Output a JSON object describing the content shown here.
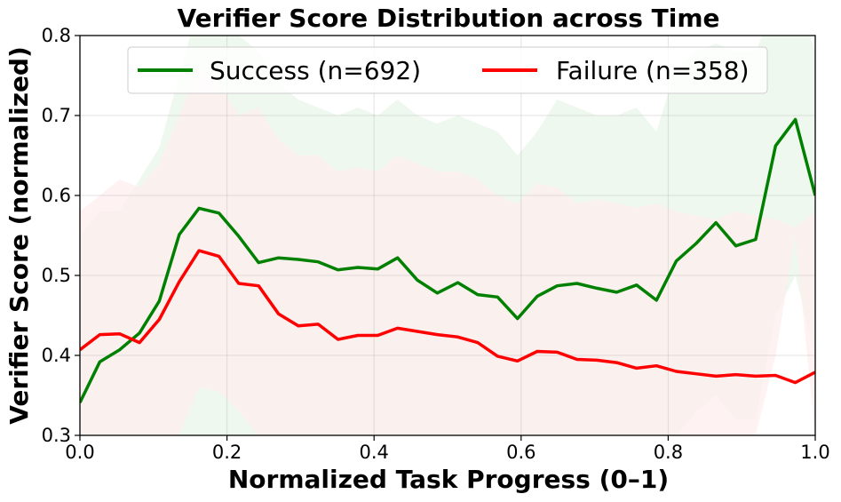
{
  "chart_data": {
    "type": "line",
    "title": "Verifier Score Distribution across Time",
    "xlabel": "Normalized Task Progress (0–1)",
    "ylabel": "Verifier Score (normalized)",
    "xlim": [
      0.0,
      1.0
    ],
    "ylim": [
      0.3,
      0.8
    ],
    "xticks": [
      "0.0",
      "0.2",
      "0.4",
      "0.6",
      "0.8",
      "1.0"
    ],
    "yticks": [
      "0.3",
      "0.4",
      "0.5",
      "0.6",
      "0.7",
      "0.8"
    ],
    "grid": true,
    "legend_position": "top-center",
    "x": [
      0.0,
      0.027,
      0.054,
      0.081,
      0.108,
      0.135,
      0.162,
      0.189,
      0.216,
      0.243,
      0.27,
      0.297,
      0.324,
      0.351,
      0.378,
      0.405,
      0.432,
      0.459,
      0.486,
      0.514,
      0.541,
      0.568,
      0.595,
      0.622,
      0.649,
      0.676,
      0.703,
      0.73,
      0.757,
      0.784,
      0.811,
      0.838,
      0.865,
      0.892,
      0.919,
      0.946,
      0.973,
      1.0
    ],
    "series": [
      {
        "name": "Success (n=692)",
        "color": "#008000",
        "band_color": "#e8f5e8",
        "values": [
          0.341,
          0.392,
          0.407,
          0.428,
          0.468,
          0.551,
          0.584,
          0.578,
          0.549,
          0.516,
          0.522,
          0.52,
          0.517,
          0.507,
          0.51,
          0.508,
          0.522,
          0.494,
          0.478,
          0.491,
          0.476,
          0.473,
          0.446,
          0.474,
          0.487,
          0.49,
          0.484,
          0.479,
          0.488,
          0.469,
          0.518,
          0.54,
          0.566,
          0.537,
          0.545,
          0.662,
          0.695,
          0.6
        ],
        "upper": [
          0.55,
          0.58,
          0.58,
          0.62,
          0.66,
          0.75,
          0.84,
          0.83,
          0.8,
          0.78,
          0.74,
          0.72,
          0.71,
          0.7,
          0.71,
          0.7,
          0.72,
          0.7,
          0.69,
          0.7,
          0.69,
          0.68,
          0.65,
          0.68,
          0.72,
          0.71,
          0.7,
          0.7,
          0.71,
          0.68,
          0.76,
          0.78,
          0.79,
          0.78,
          0.78,
          0.84,
          0.86,
          0.78
        ],
        "lower": [
          0.3,
          0.3,
          0.3,
          0.3,
          0.3,
          0.3,
          0.3,
          0.3,
          0.3,
          0.3,
          0.3,
          0.3,
          0.3,
          0.3,
          0.3,
          0.3,
          0.3,
          0.3,
          0.3,
          0.3,
          0.3,
          0.3,
          0.3,
          0.3,
          0.3,
          0.3,
          0.3,
          0.3,
          0.3,
          0.3,
          0.3,
          0.33,
          0.35,
          0.32,
          0.32,
          0.45,
          0.5,
          0.4
        ]
      },
      {
        "name": "Failure (n=358)",
        "color": "#ff0000",
        "band_color": "#fdeeee",
        "values": [
          0.407,
          0.426,
          0.427,
          0.416,
          0.445,
          0.492,
          0.531,
          0.524,
          0.49,
          0.487,
          0.452,
          0.437,
          0.439,
          0.42,
          0.425,
          0.425,
          0.434,
          0.43,
          0.426,
          0.423,
          0.416,
          0.399,
          0.393,
          0.405,
          0.404,
          0.395,
          0.394,
          0.391,
          0.384,
          0.387,
          0.38,
          0.377,
          0.374,
          0.376,
          0.374,
          0.375,
          0.366,
          0.379
        ],
        "upper": [
          0.58,
          0.6,
          0.62,
          0.61,
          0.64,
          0.7,
          0.76,
          0.74,
          0.7,
          0.71,
          0.67,
          0.65,
          0.65,
          0.63,
          0.635,
          0.63,
          0.65,
          0.64,
          0.63,
          0.63,
          0.62,
          0.6,
          0.59,
          0.615,
          0.61,
          0.59,
          0.595,
          0.59,
          0.585,
          0.59,
          0.58,
          0.575,
          0.57,
          0.58,
          0.575,
          0.57,
          0.56,
          0.58
        ],
        "lower": [
          0.3,
          0.3,
          0.3,
          0.3,
          0.3,
          0.3,
          0.36,
          0.355,
          0.33,
          0.3,
          0.3,
          0.3,
          0.3,
          0.3,
          0.3,
          0.3,
          0.3,
          0.3,
          0.3,
          0.3,
          0.3,
          0.3,
          0.3,
          0.3,
          0.3,
          0.3,
          0.3,
          0.3,
          0.3,
          0.3,
          0.3,
          0.3,
          0.3,
          0.3,
          0.3,
          0.4,
          0.55,
          0.3
        ]
      }
    ]
  }
}
